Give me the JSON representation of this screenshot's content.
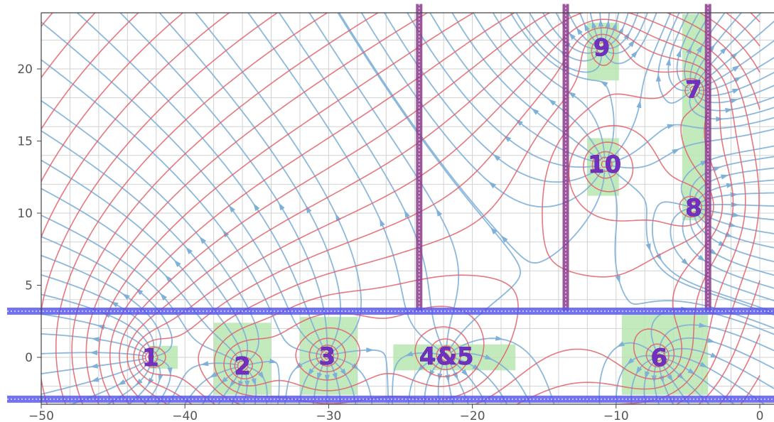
{
  "chart_data": {
    "type": "streamplot-contour",
    "title": "",
    "xlabel": "",
    "ylabel": "",
    "xlim": [
      -50,
      0
    ],
    "ylim": [
      -3,
      24
    ],
    "xticks": [
      -50,
      -40,
      -30,
      -20,
      -10,
      0
    ],
    "yticks": [
      0,
      5,
      10,
      15,
      20
    ],
    "xtick_labels": [
      "−50",
      "−40",
      "−30",
      "−20",
      "−10",
      "0"
    ],
    "ytick_labels": [
      "0",
      "5",
      "10",
      "15",
      "20"
    ],
    "grid": true,
    "minor_grid_step": 2,
    "colors": {
      "contour": "#e0606a",
      "streamline": "#7fb0d8",
      "highlight": "#b8e6b0",
      "wall_vertical": "#8b3a8b",
      "wall_horizontal": "#5a5af0",
      "label": "#7030c0"
    },
    "walls": {
      "horizontal": [
        {
          "y": 3.2,
          "x_range": [
            -52.5,
            0
          ]
        },
        {
          "y": -2.9,
          "x_range": [
            -52.5,
            0
          ]
        }
      ],
      "vertical": [
        {
          "x": -23.7,
          "y_range": [
            3.2,
            24.5
          ]
        },
        {
          "x": -13.5,
          "y_range": [
            3.2,
            24.5
          ]
        },
        {
          "x": -3.6,
          "y_range": [
            3.2,
            24.5
          ]
        }
      ]
    },
    "highlight_regions": [
      {
        "x": [
          -42.5,
          -40.5
        ],
        "y": [
          -0.8,
          0.8
        ]
      },
      {
        "x": [
          -38.0,
          -34.0
        ],
        "y": [
          -2.6,
          2.4
        ]
      },
      {
        "x": [
          -32.0,
          -28.0
        ],
        "y": [
          -2.6,
          2.8
        ]
      },
      {
        "x": [
          -25.5,
          -17.0
        ],
        "y": [
          -0.9,
          0.9
        ]
      },
      {
        "x": [
          -9.6,
          -3.6
        ],
        "y": [
          -2.6,
          3.0
        ]
      },
      {
        "x": [
          -12.0,
          -9.8
        ],
        "y": [
          19.2,
          23.2
        ]
      },
      {
        "x": [
          -5.4,
          -3.8
        ],
        "y": [
          9.5,
          23.8
        ]
      },
      {
        "x": [
          -12.0,
          -9.8
        ],
        "y": [
          11.2,
          15.2
        ]
      }
    ],
    "sources": [
      {
        "label": "1",
        "x": -42.4,
        "y": 0.0
      },
      {
        "label": "2",
        "x": -36.0,
        "y": -0.6
      },
      {
        "label": "3",
        "x": -30.1,
        "y": 0.1
      },
      {
        "label": "4&5",
        "x": -21.8,
        "y": 0.1
      },
      {
        "label": "6",
        "x": -7.0,
        "y": 0.0
      },
      {
        "label": "7",
        "x": -4.6,
        "y": 18.6
      },
      {
        "label": "8",
        "x": -4.6,
        "y": 10.4
      },
      {
        "label": "9",
        "x": -11.0,
        "y": 21.5
      },
      {
        "label": "10",
        "x": -10.8,
        "y": 13.4
      }
    ]
  }
}
